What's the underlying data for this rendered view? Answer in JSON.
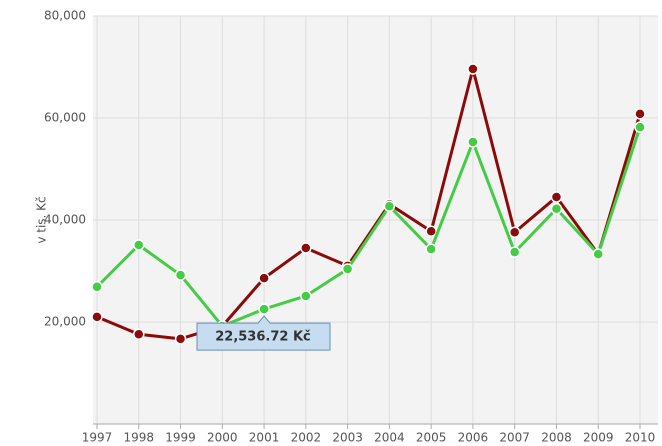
{
  "chart_data": {
    "type": "line",
    "y_label": "v tis. Kč",
    "categories": [
      "1997",
      "1998",
      "1999",
      "2000",
      "2001",
      "2002",
      "2003",
      "2004",
      "2005",
      "2006",
      "2007",
      "2008",
      "2009",
      "2010"
    ],
    "series": [
      {
        "color": "#8b0a0a",
        "values": [
          21000,
          17600,
          16700,
          19200,
          28600,
          34500,
          31000,
          43100,
          37800,
          69600,
          37600,
          44500,
          33300,
          60800
        ]
      },
      {
        "color": "#44cc44",
        "values": [
          26900,
          35100,
          29200,
          19200,
          22536.72,
          25100,
          30400,
          42700,
          34300,
          55300,
          33700,
          42200,
          33300,
          58200
        ]
      }
    ],
    "ylim": [
      0,
      80000
    ],
    "yticks": [
      {
        "value": 20000,
        "label": "20,000"
      },
      {
        "value": 40000,
        "label": "40,000"
      },
      {
        "value": 60000,
        "label": "60,000"
      },
      {
        "value": 80000,
        "label": "80,000"
      }
    ],
    "grid": true,
    "tooltip": {
      "series": 1,
      "index": 4,
      "label": "22,536.72 Kč"
    }
  }
}
